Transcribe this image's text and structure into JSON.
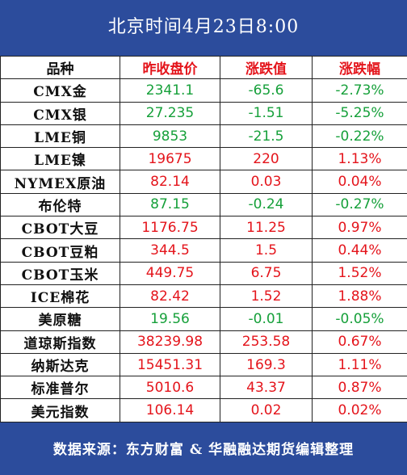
{
  "header": {
    "title": "北京时间4月23日8:00"
  },
  "table": {
    "columns": [
      "品种",
      "昨收盘价",
      "涨跌值",
      "涨跌幅"
    ],
    "rows": [
      [
        "CMX金",
        "2341.1",
        "-65.6",
        "-2.73%"
      ],
      [
        "CMX银",
        "27.235",
        "-1.51",
        "-5.25%"
      ],
      [
        "LME铜",
        "9853",
        "-21.5",
        "-0.22%"
      ],
      [
        "LME镍",
        "19675",
        "220",
        "1.13%"
      ],
      [
        "NYMEX原油",
        "82.14",
        "0.03",
        "0.04%"
      ],
      [
        "布伦特",
        "87.15",
        "-0.24",
        "-0.27%"
      ],
      [
        "CBOT大豆",
        "1176.75",
        "11.25",
        "0.97%"
      ],
      [
        "CBOT豆粕",
        "344.5",
        "1.5",
        "0.44%"
      ],
      [
        "CBOT玉米",
        "449.75",
        "6.75",
        "1.52%"
      ],
      [
        "ICE棉花",
        "82.42",
        "1.52",
        "1.88%"
      ],
      [
        "美原糖",
        "19.56",
        "-0.01",
        "-0.05%"
      ],
      [
        "道琼斯指数",
        "38239.98",
        "253.58",
        "0.67%"
      ],
      [
        "纳斯达克",
        "15451.31",
        "169.3",
        "1.11%"
      ],
      [
        "标准普尔",
        "5010.6",
        "43.37",
        "0.87%"
      ],
      [
        "美元指数",
        "106.14",
        "0.02",
        "0.02%"
      ]
    ]
  },
  "footer": {
    "text": "数据来源：东方财富 & 华融融达期货编辑整理"
  }
}
